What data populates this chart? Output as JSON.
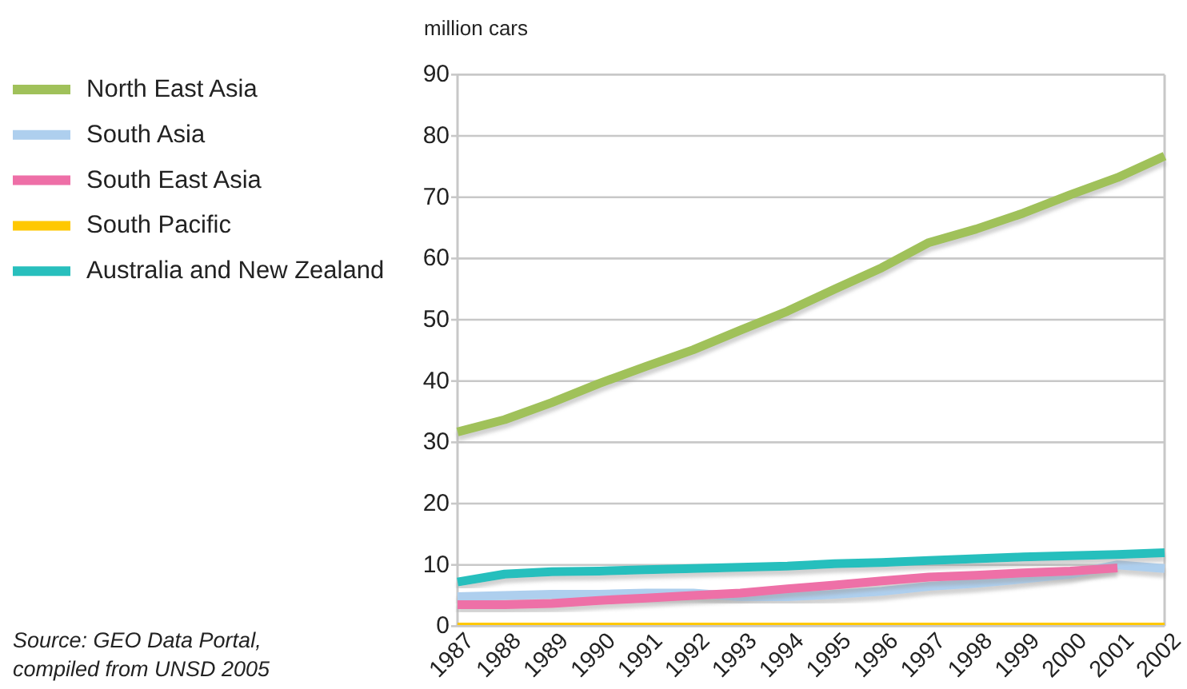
{
  "chart_data": {
    "type": "line",
    "ylabel": "million cars",
    "annotations": [
      "Source: GEO Data Portal,\ncompiled from UNSD 2005"
    ],
    "categories": [
      "1987",
      "1988",
      "1989",
      "1990",
      "1991",
      "1992",
      "1993",
      "1994",
      "1995",
      "1996",
      "1997",
      "1998",
      "1999",
      "2000",
      "2001",
      "2002"
    ],
    "series": [
      {
        "name": "North East Asia",
        "color": "#a0c15a",
        "values": [
          31.7,
          33.7,
          36.5,
          39.6,
          42.4,
          45.1,
          48.3,
          51.4,
          55.0,
          58.5,
          62.6,
          64.8,
          67.4,
          70.4,
          73.2,
          76.7
        ]
      },
      {
        "name": "South Asia",
        "color": "#aecfee",
        "values": [
          4.8,
          5.0,
          5.2,
          5.2,
          5.4,
          5.4,
          4.8,
          4.8,
          5.2,
          5.7,
          6.5,
          7.0,
          7.7,
          8.5,
          10.0,
          9.4
        ]
      },
      {
        "name": "South East Asia",
        "color": "#ee6fa7",
        "values": [
          3.5,
          3.5,
          3.7,
          4.2,
          4.6,
          5.0,
          5.4,
          6.1,
          6.7,
          7.4,
          8.0,
          8.3,
          8.7,
          9.0,
          9.5,
          null
        ]
      },
      {
        "name": "South Pacific",
        "color": "#ffc800",
        "values": [
          0.5,
          0.3,
          0.3,
          0.3,
          0.3,
          0.3,
          0.3,
          0.3,
          0.3,
          0.3,
          0.3,
          0.3,
          0.3,
          0.3,
          0.3,
          0.3
        ]
      },
      {
        "name": "Australia and New Zealand",
        "color": "#28bfbd",
        "values": [
          7.2,
          8.5,
          8.9,
          9.0,
          9.2,
          9.4,
          9.6,
          9.8,
          10.2,
          10.4,
          10.7,
          11.0,
          11.3,
          11.5,
          11.7,
          12.0
        ]
      }
    ],
    "ylim": [
      0,
      90
    ],
    "yticks": [
      0,
      10,
      20,
      30,
      40,
      50,
      60,
      70,
      80,
      90
    ],
    "grid": "y",
    "legend": "left"
  }
}
